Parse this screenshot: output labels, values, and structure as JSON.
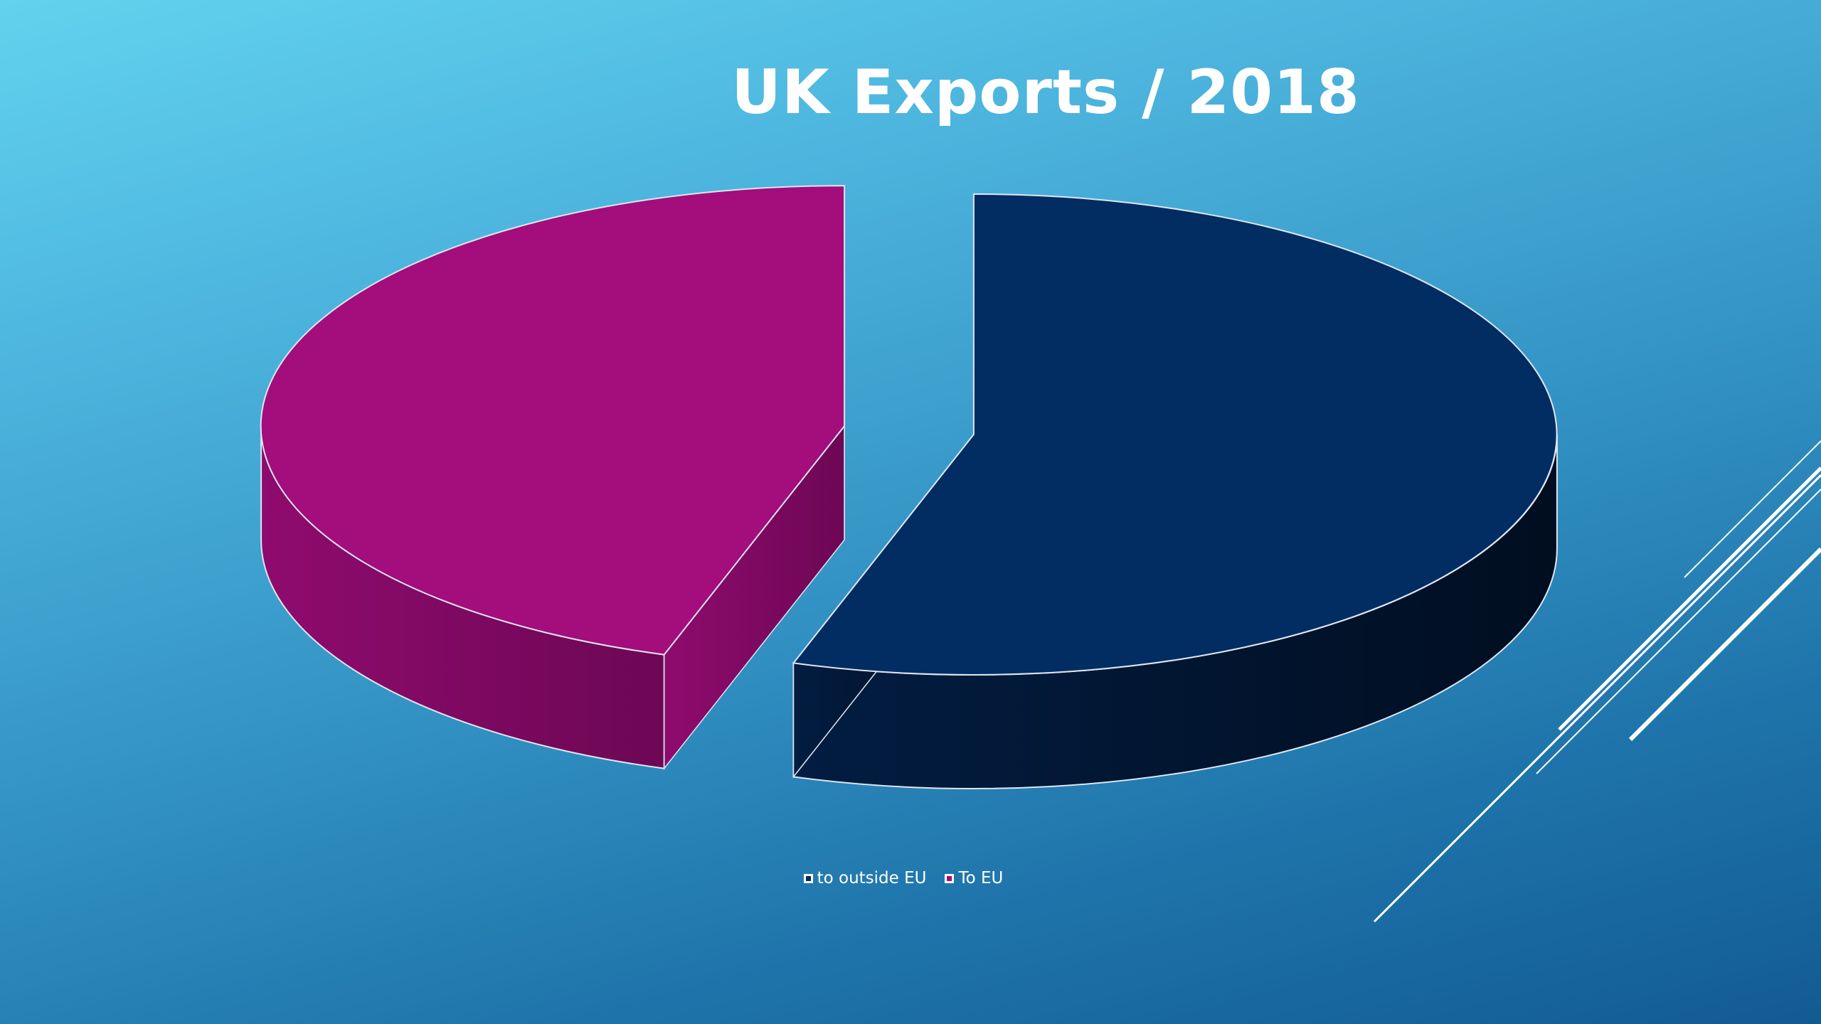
{
  "slide": {
    "background_top": "#62d2ee",
    "background_bottom": "#125b92"
  },
  "chart_data": {
    "type": "pie",
    "style": "3d-exploded",
    "title": "UK Exports / 2018",
    "categories": [
      "to outside EU",
      "To EU"
    ],
    "values": [
      55,
      45
    ],
    "colors": [
      "#022a5f",
      "#a10c7c"
    ],
    "legend_position": "bottom"
  }
}
